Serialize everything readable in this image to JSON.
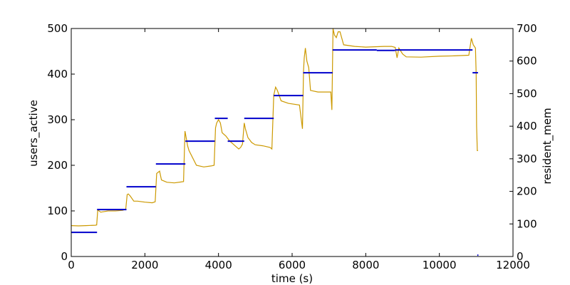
{
  "chart_data": {
    "type": "line",
    "title": "",
    "xlabel": "time (s)",
    "ylabel_left": "users_active",
    "ylabel_right": "resident_mem",
    "xlim": [
      0,
      12000
    ],
    "ylim_left": [
      0,
      500
    ],
    "ylim_right": [
      0,
      700
    ],
    "x_ticks": [
      "0",
      "2000",
      "4000",
      "6000",
      "8000",
      "10000",
      "12000"
    ],
    "y_left_ticks": [
      "0",
      "100",
      "200",
      "300",
      "400",
      "500"
    ],
    "y_right_ticks": [
      "0",
      "100",
      "200",
      "300",
      "400",
      "500",
      "600",
      "700"
    ],
    "grid": false,
    "colors": {
      "users_active": "#0000cc",
      "resident_mem": "#cc9900"
    },
    "series": [
      {
        "axis": "left",
        "segments": [
          {
            "x": [
              0,
              700
            ],
            "y": 53
          },
          {
            "x": [
              700,
              1500
            ],
            "y": 103
          },
          {
            "x": [
              1500,
              2300
            ],
            "y": 153
          },
          {
            "x": [
              2300,
              3100
            ],
            "y": 203
          },
          {
            "x": [
              3100,
              3900
            ],
            "y": 253
          },
          {
            "x": [
              3900,
              4250
            ],
            "y": 303
          },
          {
            "x": [
              4250,
              4700
            ],
            "y": 253
          },
          {
            "x": [
              4700,
              5500
            ],
            "y": 303
          },
          {
            "x": [
              5500,
              6300
            ],
            "y": 353
          },
          {
            "x": [
              6300,
              7100
            ],
            "y": 403
          },
          {
            "x": [
              7100,
              8300
            ],
            "y": 453
          },
          {
            "x": [
              8300,
              8800
            ],
            "y": 452
          },
          {
            "x": [
              8800,
              10900
            ],
            "y": 453
          },
          {
            "x": [
              10900,
              11050
            ],
            "y": 403
          },
          {
            "x": [
              11030,
              11060
            ],
            "y": 3
          }
        ]
      },
      {
        "axis": "right",
        "points": [
          [
            0,
            95
          ],
          [
            200,
            94
          ],
          [
            400,
            95
          ],
          [
            650,
            96
          ],
          [
            690,
            97
          ],
          [
            720,
            143
          ],
          [
            800,
            136
          ],
          [
            1000,
            140
          ],
          [
            1200,
            140
          ],
          [
            1400,
            142
          ],
          [
            1480,
            146
          ],
          [
            1520,
            190
          ],
          [
            1550,
            192
          ],
          [
            1600,
            186
          ],
          [
            1700,
            170
          ],
          [
            1800,
            170
          ],
          [
            2000,
            167
          ],
          [
            2200,
            165
          ],
          [
            2280,
            168
          ],
          [
            2320,
            255
          ],
          [
            2400,
            262
          ],
          [
            2450,
            235
          ],
          [
            2600,
            228
          ],
          [
            2800,
            226
          ],
          [
            3050,
            230
          ],
          [
            3090,
            385
          ],
          [
            3130,
            360
          ],
          [
            3160,
            340
          ],
          [
            3200,
            325
          ],
          [
            3400,
            280
          ],
          [
            3600,
            275
          ],
          [
            3800,
            278
          ],
          [
            3880,
            280
          ],
          [
            3920,
            395
          ],
          [
            3950,
            410
          ],
          [
            4000,
            420
          ],
          [
            4050,
            410
          ],
          [
            4100,
            380
          ],
          [
            4200,
            370
          ],
          [
            4300,
            355
          ],
          [
            4450,
            340
          ],
          [
            4550,
            330
          ],
          [
            4600,
            335
          ],
          [
            4650,
            345
          ],
          [
            4700,
            410
          ],
          [
            4730,
            392
          ],
          [
            4800,
            365
          ],
          [
            4900,
            350
          ],
          [
            5000,
            343
          ],
          [
            5200,
            340
          ],
          [
            5400,
            335
          ],
          [
            5450,
            330
          ],
          [
            5500,
            495
          ],
          [
            5550,
            520
          ],
          [
            5600,
            510
          ],
          [
            5700,
            478
          ],
          [
            5900,
            470
          ],
          [
            6200,
            465
          ],
          [
            6280,
            392
          ],
          [
            6310,
            570
          ],
          [
            6330,
            610
          ],
          [
            6360,
            640
          ],
          [
            6400,
            600
          ],
          [
            6450,
            580
          ],
          [
            6500,
            510
          ],
          [
            6700,
            505
          ],
          [
            6900,
            505
          ],
          [
            7050,
            505
          ],
          [
            7080,
            450
          ],
          [
            7110,
            700
          ],
          [
            7150,
            680
          ],
          [
            7200,
            672
          ],
          [
            7250,
            690
          ],
          [
            7300,
            690
          ],
          [
            7400,
            650
          ],
          [
            7700,
            645
          ],
          [
            8000,
            643
          ],
          [
            8500,
            645
          ],
          [
            8700,
            645
          ],
          [
            8800,
            642
          ],
          [
            8850,
            610
          ],
          [
            8900,
            640
          ],
          [
            9000,
            622
          ],
          [
            9100,
            613
          ],
          [
            9500,
            612
          ],
          [
            10000,
            615
          ],
          [
            10400,
            616
          ],
          [
            10800,
            618
          ],
          [
            10870,
            670
          ],
          [
            10920,
            650
          ],
          [
            10980,
            640
          ],
          [
            11000,
            560
          ],
          [
            11010,
            400
          ],
          [
            11030,
            325
          ],
          [
            11050,
            325
          ]
        ]
      }
    ]
  }
}
